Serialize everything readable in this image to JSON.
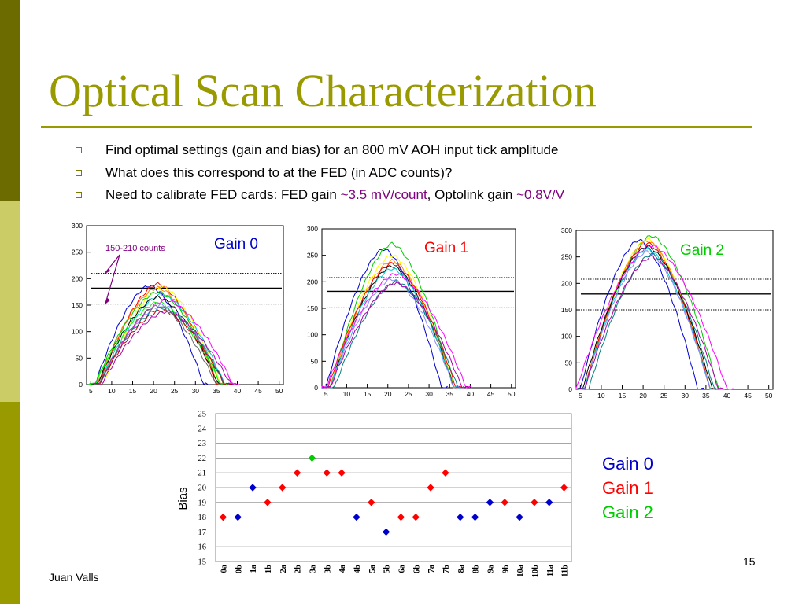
{
  "slide": {
    "title": "Optical Scan Characterization",
    "bullets": [
      {
        "text": "Find optimal settings (gain and bias) for an 800 mV AOH input tick amplitude"
      },
      {
        "text": "What does this correspond to at the FED (in ADC counts)?"
      },
      {
        "pre": "Need to calibrate FED cards: FED gain ",
        "hl1": "~3.5 mV/count",
        "mid": ",  Optolink gain ",
        "hl2": "~0.8V/V"
      }
    ],
    "author": "Juan Valls",
    "page_number": "15"
  },
  "colors": {
    "accent": "#999900",
    "gain0": "#0000cc",
    "gain1": "#ff0000",
    "gain2": "#00cc00",
    "annotation": "#800080"
  },
  "chart_data": [
    {
      "type": "line",
      "title": "Gain 0",
      "annotation": "150-210 counts",
      "xlim": [
        4,
        51
      ],
      "ylim": [
        0,
        300
      ],
      "x_ticks": [
        5,
        10,
        15,
        20,
        25,
        30,
        35,
        40,
        45,
        50
      ],
      "y_ticks": [
        0,
        50,
        100,
        150,
        200,
        250,
        300
      ],
      "reference_lines": [
        {
          "y": 210,
          "style": "dotted"
        },
        {
          "y": 182,
          "style": "solid"
        },
        {
          "y": 152,
          "style": "dotted"
        }
      ],
      "series": [
        {
          "color": "#0000cc",
          "peak": 187,
          "center": 19,
          "width": 13
        },
        {
          "color": "#ff0000",
          "peak": 190,
          "center": 21,
          "width": 14
        },
        {
          "color": "#ffff00",
          "peak": 185,
          "center": 22,
          "width": 14
        },
        {
          "color": "#ff8800",
          "peak": 183,
          "center": 21,
          "width": 14.5
        },
        {
          "color": "#00cc00",
          "peak": 175,
          "center": 21,
          "width": 15
        },
        {
          "color": "#00cccc",
          "peak": 170,
          "center": 22,
          "width": 15
        },
        {
          "color": "#ff00ff",
          "peak": 160,
          "center": 23,
          "width": 16
        },
        {
          "color": "#000000",
          "peak": 165,
          "center": 21,
          "width": 14.5
        },
        {
          "color": "#8888ff",
          "peak": 150,
          "center": 22,
          "width": 15
        },
        {
          "color": "#008080",
          "peak": 145,
          "center": 22,
          "width": 15
        },
        {
          "color": "#00ff00",
          "peak": 155,
          "center": 21,
          "width": 15
        },
        {
          "color": "#cc0000",
          "peak": 140,
          "center": 22,
          "width": 15
        },
        {
          "color": "#aa00aa",
          "peak": 138,
          "center": 23,
          "width": 15.5
        },
        {
          "color": "#666666",
          "peak": 148,
          "center": 21,
          "width": 14
        }
      ]
    },
    {
      "type": "line",
      "title": "Gain 1",
      "xlim": [
        4,
        51
      ],
      "ylim": [
        0,
        300
      ],
      "x_ticks": [
        5,
        10,
        15,
        20,
        25,
        30,
        35,
        40,
        45,
        50
      ],
      "y_ticks": [
        0,
        50,
        100,
        150,
        200,
        250,
        300
      ],
      "reference_lines": [
        {
          "y": 208,
          "style": "dotted"
        },
        {
          "y": 182,
          "style": "solid"
        },
        {
          "y": 151,
          "style": "dotted"
        }
      ],
      "series": [
        {
          "color": "#0000cc",
          "peak": 262,
          "center": 19,
          "width": 14
        },
        {
          "color": "#00cc00",
          "peak": 272,
          "center": 21,
          "width": 15
        },
        {
          "color": "#ffff00",
          "peak": 250,
          "center": 21,
          "width": 15
        },
        {
          "color": "#ff8800",
          "peak": 240,
          "center": 21,
          "width": 15
        },
        {
          "color": "#ff0000",
          "peak": 235,
          "center": 21,
          "width": 15.5
        },
        {
          "color": "#000000",
          "peak": 230,
          "center": 21,
          "width": 15
        },
        {
          "color": "#00cccc",
          "peak": 225,
          "center": 21,
          "width": 15
        },
        {
          "color": "#ff00ff",
          "peak": 215,
          "center": 22,
          "width": 17
        },
        {
          "color": "#8888ff",
          "peak": 205,
          "center": 21,
          "width": 15
        },
        {
          "color": "#008080",
          "peak": 200,
          "center": 22,
          "width": 15
        },
        {
          "color": "#aa00aa",
          "peak": 198,
          "center": 22,
          "width": 16
        }
      ]
    },
    {
      "type": "line",
      "title": "Gain 2",
      "xlim": [
        4,
        51
      ],
      "ylim": [
        0,
        300
      ],
      "x_ticks": [
        5,
        10,
        15,
        20,
        25,
        30,
        35,
        40,
        45,
        50
      ],
      "y_ticks": [
        0,
        50,
        100,
        150,
        200,
        250,
        300
      ],
      "reference_lines": [
        {
          "y": 208,
          "style": "dotted"
        },
        {
          "y": 180,
          "style": "solid"
        },
        {
          "y": 150,
          "style": "dotted"
        }
      ],
      "series": [
        {
          "color": "#0000cc",
          "peak": 282,
          "center": 19,
          "width": 14
        },
        {
          "color": "#00cc00",
          "peak": 290,
          "center": 22,
          "width": 16
        },
        {
          "color": "#ffff00",
          "peak": 283,
          "center": 21,
          "width": 15
        },
        {
          "color": "#ff8800",
          "peak": 280,
          "center": 21,
          "width": 15
        },
        {
          "color": "#ff0000",
          "peak": 276,
          "center": 21,
          "width": 15
        },
        {
          "color": "#000000",
          "peak": 270,
          "center": 21,
          "width": 15.5
        },
        {
          "color": "#00cccc",
          "peak": 265,
          "center": 21,
          "width": 15
        },
        {
          "color": "#ff00ff",
          "peak": 272,
          "center": 22,
          "width": 18
        },
        {
          "color": "#8888ff",
          "peak": 260,
          "center": 21,
          "width": 15
        },
        {
          "color": "#008080",
          "peak": 255,
          "center": 22,
          "width": 15
        },
        {
          "color": "#aa00aa",
          "peak": 250,
          "center": 22,
          "width": 16
        }
      ]
    },
    {
      "type": "scatter",
      "ylabel": "Bias",
      "ylim": [
        15,
        25
      ],
      "y_ticks": [
        15,
        16,
        17,
        18,
        19,
        20,
        21,
        22,
        23,
        24,
        25
      ],
      "grid": true,
      "categories": [
        "0a",
        "0b",
        "1a",
        "1b",
        "2a",
        "2b",
        "3a",
        "3b",
        "4a",
        "4b",
        "5a",
        "5b",
        "6a",
        "6b",
        "7a",
        "7b",
        "8a",
        "8b",
        "9a",
        "9b",
        "10a",
        "10b",
        "11a",
        "11b"
      ],
      "points": [
        {
          "category": "0a",
          "value": 18,
          "gain": 1
        },
        {
          "category": "0b",
          "value": 18,
          "gain": 0
        },
        {
          "category": "1a",
          "value": 20,
          "gain": 0
        },
        {
          "category": "1b",
          "value": 19,
          "gain": 1
        },
        {
          "category": "2a",
          "value": 20,
          "gain": 1
        },
        {
          "category": "2b",
          "value": 21,
          "gain": 1
        },
        {
          "category": "3a",
          "value": 22,
          "gain": 2
        },
        {
          "category": "3b",
          "value": 21,
          "gain": 1
        },
        {
          "category": "4a",
          "value": 21,
          "gain": 1
        },
        {
          "category": "4b",
          "value": 18,
          "gain": 0
        },
        {
          "category": "5a",
          "value": 19,
          "gain": 1
        },
        {
          "category": "5b",
          "value": 17,
          "gain": 0
        },
        {
          "category": "6a",
          "value": 18,
          "gain": 1
        },
        {
          "category": "6b",
          "value": 18,
          "gain": 1
        },
        {
          "category": "7a",
          "value": 20,
          "gain": 1
        },
        {
          "category": "7b",
          "value": 21,
          "gain": 1
        },
        {
          "category": "8a",
          "value": 18,
          "gain": 0
        },
        {
          "category": "8b",
          "value": 18,
          "gain": 0
        },
        {
          "category": "9a",
          "value": 19,
          "gain": 0
        },
        {
          "category": "9b",
          "value": 19,
          "gain": 1
        },
        {
          "category": "10a",
          "value": 18,
          "gain": 0
        },
        {
          "category": "10b",
          "value": 19,
          "gain": 1
        },
        {
          "category": "11a",
          "value": 19,
          "gain": 0
        },
        {
          "category": "11b",
          "value": 20,
          "gain": 1
        }
      ],
      "legend": [
        {
          "name": "Gain 0",
          "color": "#0000cc"
        },
        {
          "name": "Gain 1",
          "color": "#ff0000"
        },
        {
          "name": "Gain 2",
          "color": "#00cc00"
        }
      ]
    }
  ]
}
